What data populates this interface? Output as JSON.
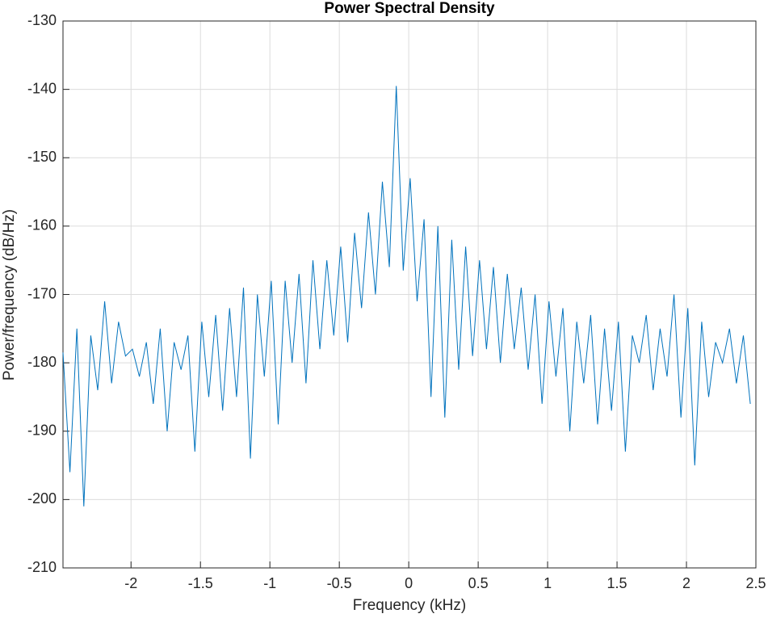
{
  "chart_data": {
    "type": "line",
    "title": "Power Spectral Density",
    "xlabel": "Frequency (kHz)",
    "ylabel": "Power/frequency (dB/Hz)",
    "color": "#0072bd",
    "grid": true,
    "xlim": [
      -2.49,
      2.5
    ],
    "ylim": [
      -210,
      -130
    ],
    "xticks": [
      -2,
      -1.5,
      -1,
      -0.5,
      0,
      0.5,
      1,
      1.5,
      2,
      2.5
    ],
    "yticks": [
      -210,
      -200,
      -190,
      -180,
      -170,
      -160,
      -150,
      -140,
      -130
    ],
    "x": [
      -2.49,
      -2.44,
      -2.39,
      -2.34,
      -2.29,
      -2.24,
      -2.19,
      -2.14,
      -2.09,
      -2.04,
      -1.99,
      -1.94,
      -1.89,
      -1.84,
      -1.79,
      -1.74,
      -1.69,
      -1.64,
      -1.59,
      -1.54,
      -1.49,
      -1.44,
      -1.39,
      -1.34,
      -1.29,
      -1.24,
      -1.19,
      -1.14,
      -1.09,
      -1.04,
      -0.99,
      -0.94,
      -0.89,
      -0.84,
      -0.79,
      -0.74,
      -0.69,
      -0.64,
      -0.59,
      -0.54,
      -0.49,
      -0.44,
      -0.39,
      -0.34,
      -0.29,
      -0.24,
      -0.19,
      -0.14,
      -0.09,
      -0.04,
      0.01,
      0.06,
      0.11,
      0.16,
      0.21,
      0.26,
      0.31,
      0.36,
      0.41,
      0.46,
      0.51,
      0.56,
      0.61,
      0.66,
      0.71,
      0.76,
      0.81,
      0.86,
      0.91,
      0.96,
      1.01,
      1.06,
      1.11,
      1.16,
      1.21,
      1.26,
      1.31,
      1.36,
      1.41,
      1.46,
      1.51,
      1.56,
      1.61,
      1.66,
      1.71,
      1.76,
      1.81,
      1.86,
      1.91,
      1.96,
      2.01,
      2.06,
      2.11,
      2.16,
      2.21,
      2.26,
      2.31,
      2.36,
      2.41,
      2.46
    ],
    "values": [
      -178.5,
      -196,
      -175,
      -201,
      -176,
      -184,
      -171,
      -183,
      -174,
      -179,
      -178,
      -182,
      -177,
      -186,
      -175,
      -190,
      -177,
      -181,
      -176,
      -193,
      -174,
      -185,
      -173,
      -187,
      -172,
      -185,
      -169,
      -194,
      -170,
      -182,
      -168,
      -189,
      -168,
      -180,
      -167,
      -183,
      -165,
      -178,
      -165,
      -176,
      -163,
      -177,
      -161,
      -172,
      -158,
      -170,
      -153.5,
      -166,
      -139.5,
      -166.5,
      -153,
      -171,
      -159,
      -185,
      -160,
      -188,
      -162,
      -181,
      -163,
      -179,
      -165,
      -178,
      -166,
      -180,
      -167,
      -178,
      -169,
      -181,
      -170,
      -186,
      -171,
      -182,
      -172,
      -190,
      -174,
      -183,
      -173,
      -189,
      -175,
      -187,
      -174,
      -193,
      -176,
      -180,
      -173,
      -184,
      -175,
      -182,
      -170,
      -188,
      -172,
      -195,
      -174,
      -185,
      -177,
      -180,
      -175,
      -183,
      -176,
      -186
    ]
  }
}
